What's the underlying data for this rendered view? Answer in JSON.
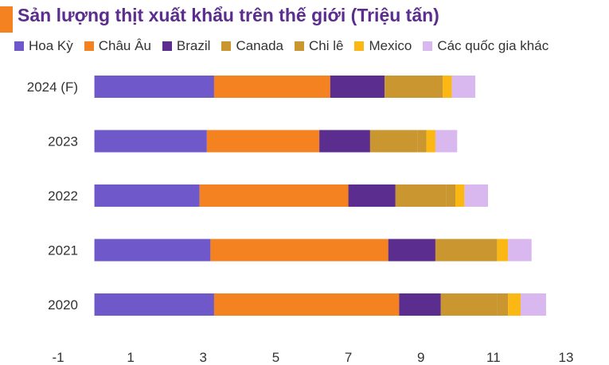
{
  "chart_data": {
    "type": "bar",
    "orientation": "horizontal",
    "stacked": true,
    "title": "Sản lượng thịt xuất khẩu trên thế giới (Triệu tấn)",
    "categories": [
      "2024 (F)",
      "2023",
      "2022",
      "2021",
      "2020"
    ],
    "series": [
      {
        "name": "Hoa Kỳ",
        "color": "#6f58c9",
        "values": [
          3.3,
          3.1,
          2.9,
          3.2,
          3.3
        ]
      },
      {
        "name": "Châu Âu",
        "color": "#f58220",
        "values": [
          3.2,
          3.1,
          4.1,
          4.9,
          5.1
        ]
      },
      {
        "name": "Brazil",
        "color": "#5b2d8e",
        "values": [
          1.5,
          1.4,
          1.3,
          1.3,
          1.15
        ]
      },
      {
        "name": "Canada",
        "color": "#c9962f",
        "values": [
          1.6,
          1.3,
          1.4,
          1.7,
          1.55
        ]
      },
      {
        "name": "Chi lê",
        "color": "#c9962f",
        "values": [
          0.0,
          0.25,
          0.25,
          0.0,
          0.3
        ]
      },
      {
        "name": "Mexico",
        "color": "#fbb814",
        "values": [
          0.25,
          0.25,
          0.25,
          0.3,
          0.35
        ]
      },
      {
        "name": "Các quốc gia khác",
        "color": "#d9b8ef",
        "values": [
          0.65,
          0.6,
          0.65,
          0.65,
          0.7
        ]
      }
    ],
    "xlim": [
      -1,
      13
    ],
    "xticks": [
      -1,
      1,
      3,
      5,
      7,
      9,
      11,
      13
    ],
    "xlabel": "",
    "ylabel": "",
    "grid": false,
    "legend": "top"
  }
}
